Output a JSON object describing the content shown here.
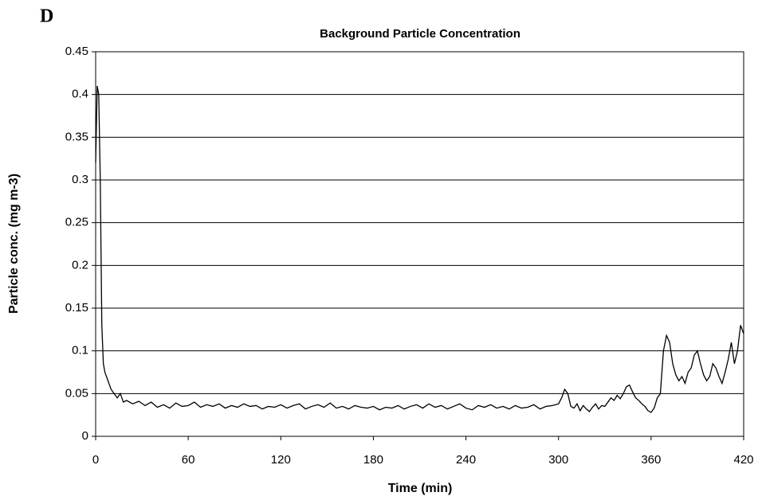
{
  "panel_label": "D",
  "chart_data": {
    "type": "line",
    "title": "Background Particle Concentration",
    "x_label": "Time (min)",
    "y_label": "Particle conc. (mg m-3)",
    "x": [
      0,
      1,
      2,
      3,
      4,
      5,
      6,
      8,
      10,
      12,
      14,
      16,
      18,
      20,
      24,
      28,
      32,
      36,
      40,
      44,
      48,
      52,
      56,
      60,
      64,
      68,
      72,
      76,
      80,
      84,
      88,
      92,
      96,
      100,
      104,
      108,
      112,
      116,
      120,
      124,
      128,
      132,
      136,
      140,
      144,
      148,
      152,
      156,
      160,
      164,
      168,
      172,
      176,
      180,
      184,
      188,
      192,
      196,
      200,
      204,
      208,
      212,
      216,
      220,
      224,
      228,
      232,
      236,
      240,
      244,
      248,
      252,
      256,
      260,
      264,
      268,
      272,
      276,
      280,
      284,
      288,
      292,
      296,
      300,
      302,
      304,
      306,
      308,
      310,
      312,
      314,
      316,
      318,
      320,
      322,
      324,
      326,
      328,
      330,
      332,
      334,
      336,
      338,
      340,
      342,
      344,
      346,
      348,
      350,
      352,
      354,
      356,
      358,
      360,
      362,
      364,
      366,
      368,
      370,
      372,
      374,
      376,
      378,
      380,
      382,
      384,
      386,
      388,
      390,
      392,
      394,
      396,
      398,
      400,
      402,
      404,
      406,
      408,
      410,
      412,
      414,
      416,
      418,
      420
    ],
    "series": [
      {
        "color": "#000000",
        "values": [
          0.32,
          0.41,
          0.4,
          0.3,
          0.13,
          0.085,
          0.075,
          0.065,
          0.055,
          0.05,
          0.045,
          0.05,
          0.04,
          0.042,
          0.038,
          0.041,
          0.036,
          0.04,
          0.034,
          0.037,
          0.033,
          0.039,
          0.035,
          0.036,
          0.04,
          0.034,
          0.037,
          0.035,
          0.038,
          0.033,
          0.036,
          0.034,
          0.038,
          0.035,
          0.036,
          0.032,
          0.035,
          0.034,
          0.037,
          0.033,
          0.036,
          0.038,
          0.032,
          0.035,
          0.037,
          0.034,
          0.039,
          0.033,
          0.035,
          0.032,
          0.036,
          0.034,
          0.033,
          0.035,
          0.031,
          0.034,
          0.033,
          0.036,
          0.032,
          0.035,
          0.037,
          0.033,
          0.038,
          0.034,
          0.036,
          0.032,
          0.035,
          0.038,
          0.033,
          0.031,
          0.036,
          0.034,
          0.037,
          0.033,
          0.035,
          0.032,
          0.036,
          0.033,
          0.034,
          0.037,
          0.032,
          0.035,
          0.036,
          0.038,
          0.045,
          0.055,
          0.05,
          0.035,
          0.033,
          0.038,
          0.03,
          0.036,
          0.032,
          0.029,
          0.034,
          0.038,
          0.032,
          0.036,
          0.035,
          0.04,
          0.045,
          0.042,
          0.048,
          0.044,
          0.05,
          0.058,
          0.06,
          0.052,
          0.045,
          0.042,
          0.038,
          0.035,
          0.03,
          0.028,
          0.033,
          0.045,
          0.05,
          0.1,
          0.118,
          0.11,
          0.085,
          0.072,
          0.065,
          0.07,
          0.062,
          0.075,
          0.08,
          0.095,
          0.1,
          0.085,
          0.072,
          0.065,
          0.07,
          0.085,
          0.08,
          0.07,
          0.062,
          0.075,
          0.09,
          0.11,
          0.085,
          0.1,
          0.13,
          0.12
        ]
      }
    ],
    "xlim": [
      0,
      420
    ],
    "xticks": [
      0,
      60,
      120,
      180,
      240,
      300,
      360,
      420
    ],
    "ylim": [
      0,
      0.45
    ],
    "yticks": [
      0,
      0.05,
      0.1,
      0.15,
      0.2,
      0.25,
      0.3,
      0.35,
      0.4,
      0.45
    ],
    "grid": true
  }
}
